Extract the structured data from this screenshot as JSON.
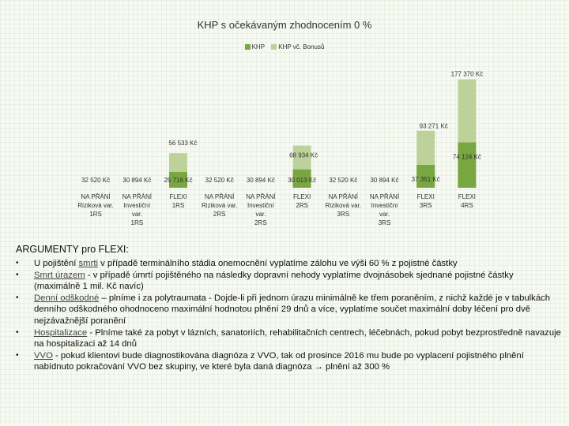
{
  "chart_data": {
    "type": "bar",
    "title": "KHP s očekávaným zhodnocením 0 %",
    "legend": {
      "position": "top",
      "entries": [
        "KHP",
        "KHP vč. Bonusů"
      ]
    },
    "categories": [
      [
        "NA PŘÁNÍ",
        "Riziková var.",
        "1RS"
      ],
      [
        "NA PŘÁNÍ",
        "Investiční",
        "var.",
        "1RS"
      ],
      [
        "FLEXI",
        "1RS"
      ],
      [
        "NA PŘÁNÍ",
        "Riziková var.",
        "2RS"
      ],
      [
        "NA PŘÁNÍ",
        "Investiční",
        "var.",
        "2RS"
      ],
      [
        "FLEXI",
        "2RS"
      ],
      [
        "NA PŘÁNÍ",
        "Riziková var.",
        "3RS"
      ],
      [
        "NA PŘÁNÍ",
        "Investiční",
        "var.",
        "3RS"
      ],
      [
        "FLEXI",
        "3RS"
      ],
      [
        "FLEXI",
        "4RS"
      ]
    ],
    "series": [
      {
        "name": "KHP",
        "values": [
          32520,
          30894,
          25716,
          32520,
          30894,
          30013,
          32520,
          30894,
          37351,
          74124
        ],
        "labels": [
          "32 520 Kč",
          "30 894 Kč",
          "25 716 Kč",
          "32 520 Kč",
          "30 894 Kč",
          "30 013 Kč",
          "32 520 Kč",
          "30 894 Kč",
          "37 351 Kč",
          "74 124 Kč"
        ]
      },
      {
        "name": "KHP vč. Bonusů",
        "values": [
          null,
          null,
          56533,
          null,
          null,
          68934,
          null,
          null,
          93271,
          177370
        ],
        "labels": [
          "",
          "",
          "56 533 Kč",
          "",
          "",
          "68 934 Kč",
          "",
          "",
          "93 271 Kč",
          "177 370 Kč"
        ]
      }
    ],
    "ylim": [
      0,
      200000
    ],
    "grid": false,
    "colors": {
      "KHP": "#78a640",
      "KHP vč. Bonusů": "#bcd29a"
    }
  },
  "arguments": {
    "title": "ARGUMENTY pro FLEXI:",
    "items": [
      {
        "term": "",
        "pre": "U pojištění ",
        "underline": "smrti",
        "text": " v případě terminálního stádia onemocnění vyplatíme zálohu ve výši 60 % z pojistné částky"
      },
      {
        "term": "",
        "pre": "",
        "underline": "Smrt úrazem",
        "text": " - v případě úmrtí pojištěného na následky dopravní nehody vyplatíme dvojnásobek sjednané pojistné částky (maximálně 1 mil. Kč navíc)"
      },
      {
        "term": "",
        "pre": "",
        "underline": "Denní odškodné",
        "text": " – plníme i za polytraumata - Dojde-li při jednom úrazu minimálně ke třem poraněním, z nichž každé je v tabulkách denního odškodného ohodnoceno maximální hodnotou plnění 29 dnů a více, vyplatíme součet maximální doby léčení pro dvě nejzávažnější poranění"
      },
      {
        "term": "",
        "pre": "",
        "underline": "Hospitalizace",
        "text": " - Plníme také za pobyt v lázních, sanatoriích, rehabilitačních centrech, léčebnách, pokud pobyt bezprostředně navazuje na hospitalizaci až 14 dnů"
      },
      {
        "term": "",
        "pre": "",
        "underline": "VVO",
        "text": " - pokud klientovi bude diagnostikována diagnóza z VVO, tak od prosince 2016 mu bude po vyplacení pojistného plnění nabídnuto pokračování VVO bez skupiny, ve které byla daná diagnóza → plnění až 300 %"
      }
    ]
  }
}
